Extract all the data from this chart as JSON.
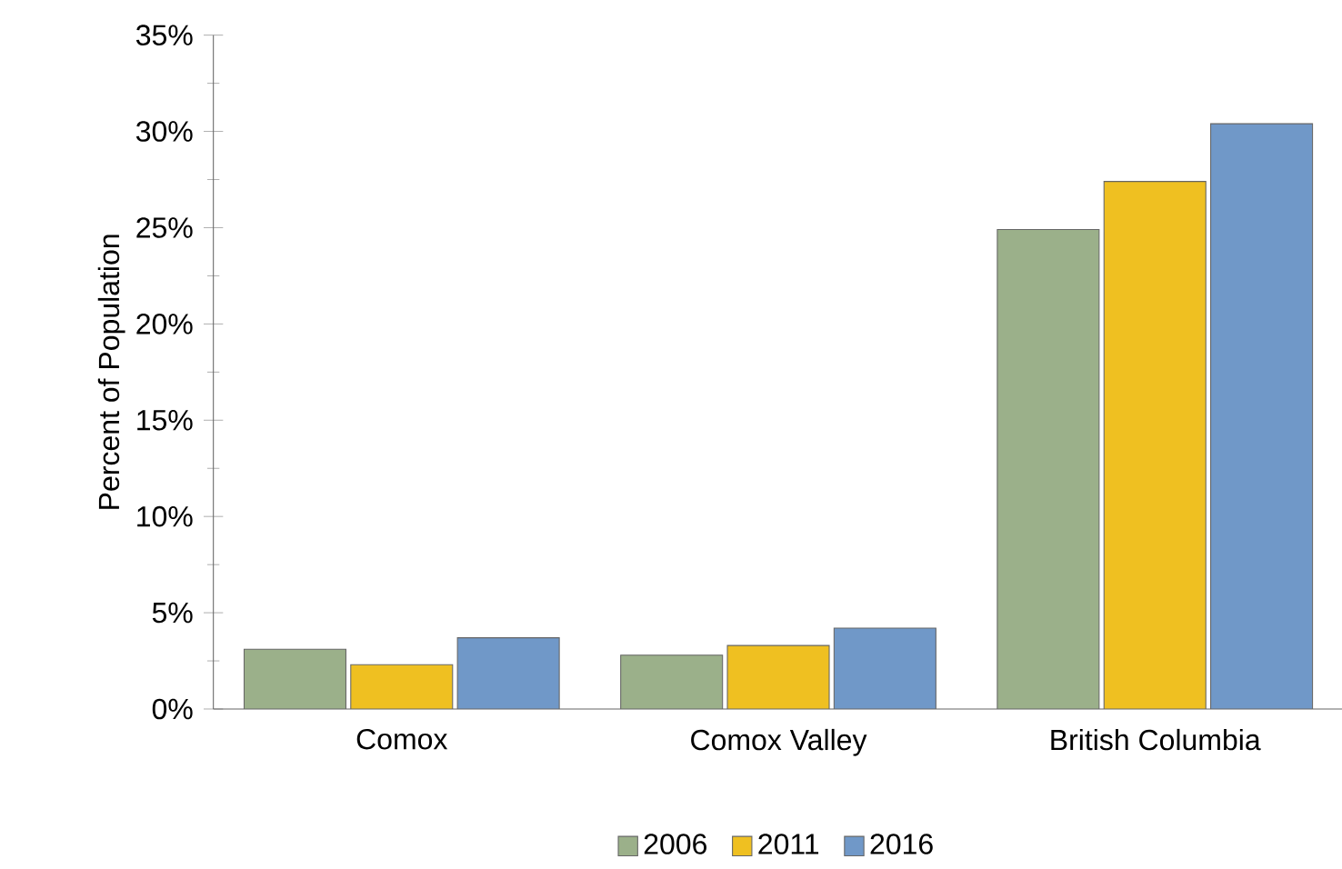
{
  "chart_data": {
    "type": "bar",
    "ylabel": "Percent of Population",
    "categories": [
      "Comox",
      "Comox Valley",
      "British Columbia"
    ],
    "series": [
      {
        "name": "2006",
        "color": "#9bb08a",
        "values": [
          3.1,
          2.8,
          24.9
        ]
      },
      {
        "name": "2011",
        "color": "#efc021",
        "values": [
          2.3,
          3.3,
          27.4
        ]
      },
      {
        "name": "2016",
        "color": "#7098c8",
        "values": [
          3.7,
          4.2,
          30.4
        ]
      }
    ],
    "ylim": [
      0,
      35
    ],
    "yticks": [
      {
        "value": 0,
        "label": "0%"
      },
      {
        "value": 5,
        "label": "5%"
      },
      {
        "value": 10,
        "label": "10%"
      },
      {
        "value": 15,
        "label": "15%"
      },
      {
        "value": 20,
        "label": "20%"
      },
      {
        "value": 25,
        "label": "25%"
      },
      {
        "value": 30,
        "label": "30%"
      },
      {
        "value": 35,
        "label": "35%"
      }
    ],
    "grid": false,
    "legend": "bottom"
  }
}
